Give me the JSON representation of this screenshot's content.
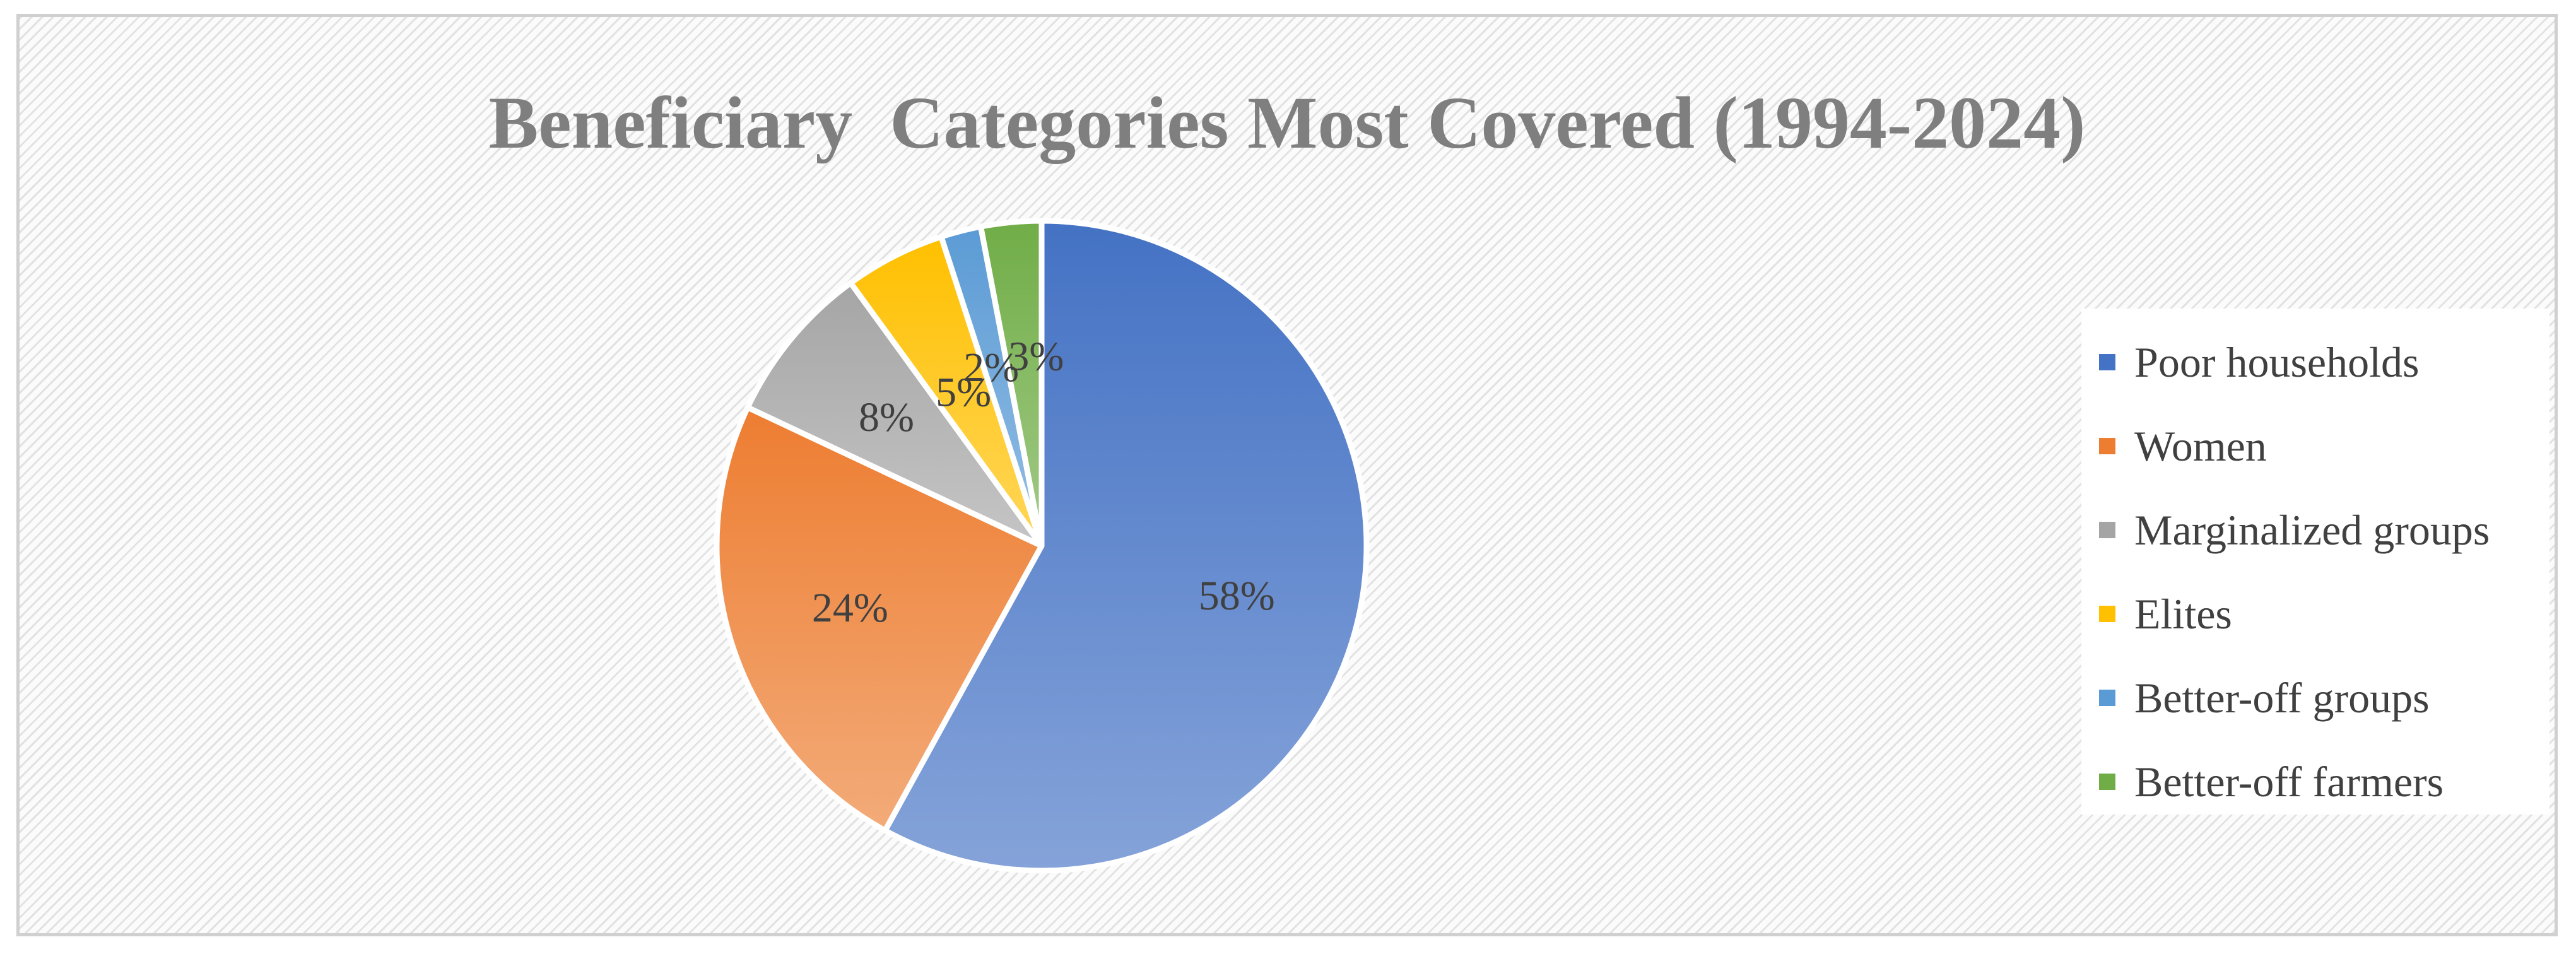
{
  "chart_data": {
    "type": "pie",
    "title": "Beneficiary  Categories Most Covered (1994-2024)",
    "categories": [
      "Poor households",
      "Women",
      "Marginalized groups",
      "Elites",
      "Better-off groups",
      "Better-off farmers"
    ],
    "values": [
      58,
      24,
      8,
      5,
      2,
      3
    ],
    "data_labels": [
      "58%",
      "24%",
      "8%",
      "5%",
      "2%",
      "3%"
    ],
    "colors": [
      "#4472c4",
      "#ed7d31",
      "#a5a5a5",
      "#ffc000",
      "#5b9bd5",
      "#70ad47"
    ],
    "legend_position": "right",
    "label_color": "#404040",
    "title_color": "#7f7f7f"
  }
}
